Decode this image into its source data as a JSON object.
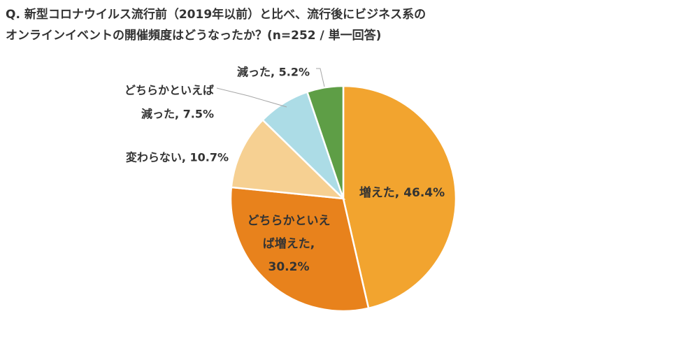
{
  "title_line1": "Q. 新型コロナウイルス流行前（2019年以前）と比べ、流行後にビジネス系の",
  "title_line2": "オンラインイベントの開催頻度はどうなったか？(n=252 / 単一回答)",
  "chart_data": {
    "type": "pie",
    "title": "Q. 新型コロナウイルス流行前（2019年以前）と比べ、流行後にビジネス系のオンラインイベントの開催頻度はどうなったか？(n=252 / 単一回答)",
    "slices": [
      {
        "label": "増えた",
        "value": 46.4,
        "color": "#F2A42F",
        "display": [
          "増えた, 46.4%"
        ]
      },
      {
        "label": "どちらかといえば増えた",
        "value": 30.2,
        "color": "#E8821C",
        "display": [
          "どちらかといえ",
          "ば増えた,",
          "30.2%"
        ]
      },
      {
        "label": "変わらない",
        "value": 10.7,
        "color": "#F6D092",
        "display": [
          "変わらない, 10.7%"
        ]
      },
      {
        "label": "どちらかといえば減った",
        "value": 7.5,
        "color": "#ACDCE6",
        "display": [
          "どちらかといえば",
          "減った, 7.5%"
        ]
      },
      {
        "label": "減った",
        "value": 5.2,
        "color": "#5E9E46",
        "display": [
          "減った, 5.2%"
        ]
      }
    ]
  }
}
